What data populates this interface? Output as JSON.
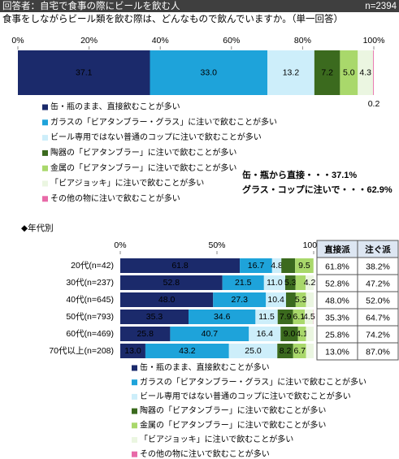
{
  "header": {
    "title": "回答者：自宅で食事の際にビールを飲む人",
    "n": "n=2394"
  },
  "question": "食事をしながらビール類を飲む際は、どんなもので飲んでいますか。（単一回答）",
  "chart_data": [
    {
      "type": "bar",
      "orientation": "horizontal",
      "stacked": true,
      "xlim": [
        0,
        100
      ],
      "xticks": [
        {
          "value": 0,
          "label": "0%"
        },
        {
          "value": 20,
          "label": "20%"
        },
        {
          "value": 40,
          "label": "40%"
        },
        {
          "value": 60,
          "label": "60%"
        },
        {
          "value": 80,
          "label": "80%"
        },
        {
          "value": 100,
          "label": "100%"
        }
      ],
      "series": [
        {
          "name": "缶・瓶のまま、直接飲むことが多い",
          "color": "#1b2a6b",
          "values": [
            37.1
          ],
          "value_labels": [
            "37.1"
          ]
        },
        {
          "name": "ガラスの「ビアタンブラー・グラス」に注いで飲むことが多い",
          "color": "#1ea3da",
          "values": [
            33.0
          ],
          "value_labels": [
            "33.0"
          ]
        },
        {
          "name": "ビール専用ではない普通のコップに注いで飲むことが多い",
          "color": "#cdeefa",
          "values": [
            13.2
          ],
          "value_labels": [
            "13.2"
          ]
        },
        {
          "name": "陶器の「ビアタンブラー」に注いで飲むことが多い",
          "color": "#3b6a1e",
          "values": [
            7.2
          ],
          "value_labels": [
            "7.2"
          ]
        },
        {
          "name": "金属の「ビアタンブラー」に注いで飲むことが多い",
          "color": "#a9d86b",
          "values": [
            5.0
          ],
          "value_labels": [
            "5.0"
          ]
        },
        {
          "name": "「ビアジョッキ」に注いで飲むことが多い",
          "color": "#ebf6e1",
          "values": [
            4.3
          ],
          "value_labels": [
            "4.3"
          ]
        },
        {
          "name": "その他の物に注いで飲むことが多い",
          "color": "#e86aa8",
          "values": [
            0.2
          ],
          "value_labels": [
            "0.2"
          ]
        }
      ],
      "annotations": [
        "缶・瓶から直接・・・37.1%",
        "グラス・コップに注いで・・・62.9%"
      ]
    },
    {
      "type": "bar",
      "orientation": "horizontal",
      "stacked": true,
      "title": "◆年代別",
      "categories": [
        "20代(n=42)",
        "30代(n=237)",
        "40代(n=645)",
        "50代(n=793)",
        "60代(n=469)",
        "70代以上(n=208)"
      ],
      "xlim": [
        0,
        100
      ],
      "xticks": [
        {
          "value": 0,
          "label": "0%"
        },
        {
          "value": 50,
          "label": "50%"
        },
        {
          "value": 100,
          "label": "100%"
        }
      ],
      "series": [
        {
          "name": "缶・瓶のまま、直接飲むことが多い",
          "color": "#1b2a6b",
          "values": [
            61.8,
            52.8,
            48.0,
            35.3,
            25.8,
            13.0
          ],
          "value_labels": [
            "61.8",
            "52.8",
            "48.0",
            "35.3",
            "25.8",
            "13.0"
          ]
        },
        {
          "name": "ガラスの「ビアタンブラー・グラス」に注いで飲むことが多い",
          "color": "#1ea3da",
          "values": [
            16.7,
            21.5,
            27.3,
            34.6,
            40.7,
            43.2
          ],
          "value_labels": [
            "16.7",
            "21.5",
            "27.3",
            "34.6",
            "40.7",
            "43.2"
          ]
        },
        {
          "name": "ビール専用ではない普通のコップに注いで飲むことが多い",
          "color": "#cdeefa",
          "values": [
            4.8,
            11.0,
            10.4,
            11.5,
            16.4,
            25.0
          ],
          "value_labels": [
            "4.8",
            "11.0",
            "10.4",
            "11.5",
            "16.4",
            "25.0"
          ]
        },
        {
          "name": "陶器の「ビアタンブラー」に注いで飲むことが多い",
          "color": "#3b6a1e",
          "values": [
            7.1,
            5.3,
            5.0,
            7.9,
            9.0,
            8.2
          ],
          "value_labels": [
            null,
            "5.3",
            null,
            "7.9",
            "9.0",
            "8.2"
          ]
        },
        {
          "name": "金属の「ビアタンブラー」に注いで飲むことが多い",
          "color": "#a9d86b",
          "values": [
            9.5,
            5.2,
            5.3,
            6.1,
            4.1,
            6.7
          ],
          "value_labels": [
            "9.5",
            null,
            "5.3",
            "6.1",
            "4.1",
            "6.7"
          ]
        },
        {
          "name": "「ビアジョッキ」に注いで飲むことが多い",
          "color": "#ebf6e1",
          "values": [
            0,
            4.2,
            4.0,
            4.5,
            4.0,
            3.9
          ],
          "value_labels": [
            null,
            "4.2",
            null,
            "4.5",
            null,
            null
          ]
        },
        {
          "name": "その他の物に注いで飲むことが多い",
          "color": "#e86aa8",
          "values": [
            0,
            0,
            0,
            0.1,
            0,
            0
          ],
          "value_labels": [
            null,
            null,
            null,
            null,
            null,
            null
          ]
        }
      ]
    }
  ],
  "table": {
    "header": [
      "直接派",
      "注ぐ派"
    ],
    "rows": [
      [
        "61.8%",
        "38.2%"
      ],
      [
        "52.8%",
        "47.2%"
      ],
      [
        "48.0%",
        "52.0%"
      ],
      [
        "35.3%",
        "64.7%"
      ],
      [
        "25.8%",
        "74.2%"
      ],
      [
        "13.0%",
        "87.0%"
      ]
    ]
  }
}
